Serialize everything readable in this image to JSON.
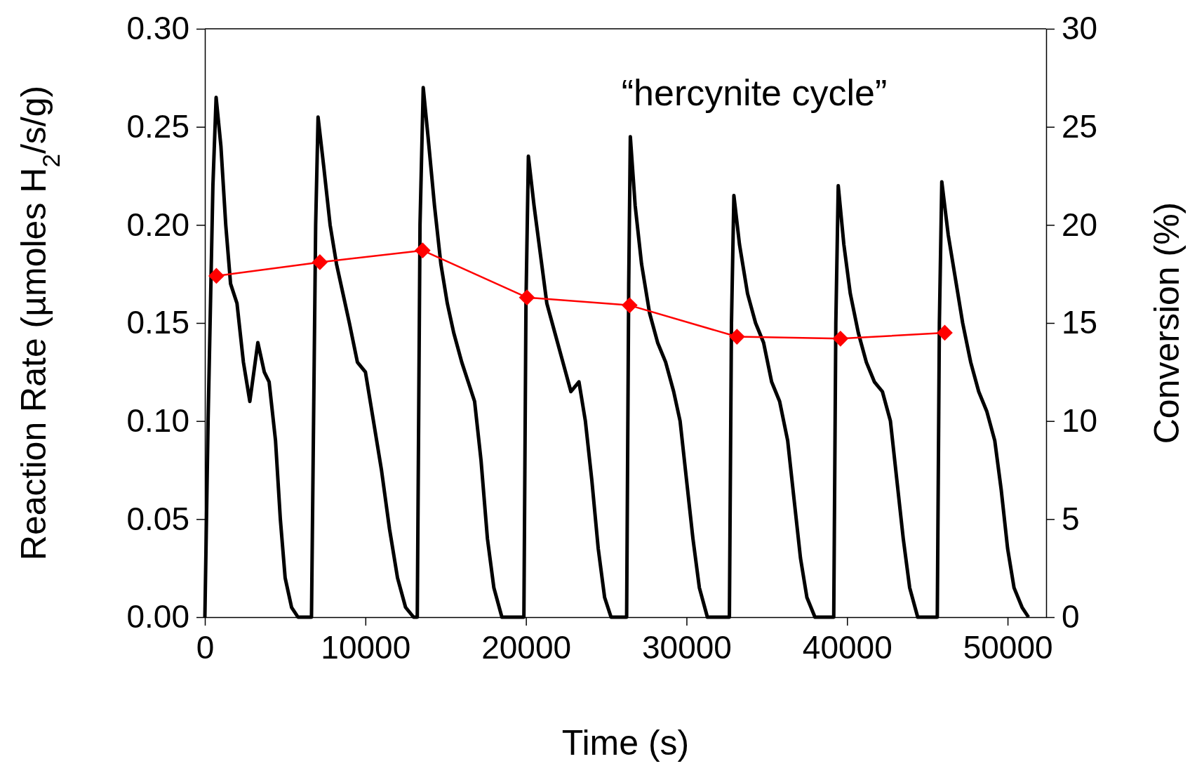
{
  "chart_data": {
    "type": "line",
    "xlabel": "Time (s)",
    "ylabel": "Reaction Rate (µmoles H$_{2}$/s/g)",
    "y2label": "Conversion (%)",
    "annotations": [
      "“hercynite cycle”"
    ],
    "xlim": [
      0,
      52400
    ],
    "xticks": [
      0,
      10000,
      20000,
      30000,
      40000,
      50000
    ],
    "ylim": [
      0,
      0.3
    ],
    "yticks": [
      {
        "value": 0,
        "label": "0.00"
      },
      {
        "value": 0.05,
        "label": "0.05"
      },
      {
        "value": 0.1,
        "label": "0.10"
      },
      {
        "value": 0.15,
        "label": "0.15"
      },
      {
        "value": 0.2,
        "label": "0.20"
      },
      {
        "value": 0.25,
        "label": "0.25"
      },
      {
        "value": 0.3,
        "label": "0.30"
      }
    ],
    "y2lim": [
      0,
      30
    ],
    "y2ticks": [
      0,
      5,
      10,
      15,
      20,
      25,
      30
    ],
    "grid": false,
    "line_style": "solid",
    "series": [
      {
        "color": "#000000",
        "marker": "none",
        "x": [
          0,
          200,
          500,
          700,
          1000,
          1300,
          1600,
          2000,
          2400,
          2800,
          3300,
          3700,
          4000,
          4400,
          4700,
          5000,
          5400,
          5800,
          6640,
          6900,
          7050,
          7400,
          7800,
          8200,
          8600,
          9000,
          9500,
          10000,
          10500,
          11000,
          11500,
          12000,
          12500,
          13000,
          13230,
          13400,
          13600,
          13900,
          14300,
          14700,
          15100,
          15500,
          16000,
          16400,
          16800,
          17200,
          17600,
          18000,
          18500,
          19870,
          20000,
          20150,
          20500,
          20900,
          21300,
          21800,
          22300,
          22800,
          23300,
          23700,
          24100,
          24500,
          24900,
          25300,
          26270,
          26400,
          26500,
          26800,
          27200,
          27700,
          28200,
          28700,
          29200,
          29600,
          30000,
          30400,
          30800,
          31300,
          32670,
          32800,
          32950,
          33300,
          33800,
          34300,
          34800,
          35300,
          35800,
          36300,
          36700,
          37100,
          37500,
          38000,
          39170,
          39300,
          39450,
          39800,
          40200,
          40700,
          41200,
          41700,
          42200,
          42700,
          43100,
          43500,
          43900,
          44400,
          45620,
          45750,
          45900,
          46300,
          46700,
          47200,
          47700,
          48200,
          48700,
          49200,
          49600,
          50000,
          50400,
          50900,
          51300
        ],
        "values": [
          0,
          0.1,
          0.22,
          0.265,
          0.24,
          0.2,
          0.17,
          0.16,
          0.13,
          0.11,
          0.14,
          0.125,
          0.12,
          0.09,
          0.05,
          0.02,
          0.005,
          0,
          0,
          0.2,
          0.255,
          0.23,
          0.2,
          0.18,
          0.165,
          0.15,
          0.13,
          0.125,
          0.1,
          0.075,
          0.045,
          0.02,
          0.005,
          0,
          0,
          0.2,
          0.27,
          0.245,
          0.21,
          0.18,
          0.16,
          0.145,
          0.13,
          0.12,
          0.11,
          0.08,
          0.04,
          0.015,
          0,
          0,
          0.16,
          0.235,
          0.21,
          0.185,
          0.16,
          0.145,
          0.13,
          0.115,
          0.12,
          0.1,
          0.07,
          0.035,
          0.01,
          0,
          0,
          0.17,
          0.245,
          0.21,
          0.18,
          0.155,
          0.14,
          0.13,
          0.115,
          0.1,
          0.07,
          0.04,
          0.015,
          0,
          0,
          0.15,
          0.215,
          0.19,
          0.165,
          0.15,
          0.14,
          0.12,
          0.11,
          0.09,
          0.06,
          0.03,
          0.01,
          0,
          0,
          0.15,
          0.22,
          0.19,
          0.165,
          0.145,
          0.13,
          0.12,
          0.115,
          0.1,
          0.07,
          0.04,
          0.015,
          0,
          0,
          0.15,
          0.222,
          0.195,
          0.175,
          0.15,
          0.13,
          0.115,
          0.105,
          0.09,
          0.065,
          0.035,
          0.015,
          0.005,
          0
        ]
      },
      {
        "color": "#ff0000",
        "marker": "diamond",
        "axis": "y2",
        "x": [
          716,
          7163,
          13563,
          20058,
          26456,
          33141,
          39589,
          46084
        ],
        "values": [
          17.4,
          18.1,
          18.7,
          16.3,
          15.9,
          14.3,
          14.2,
          14.5
        ]
      }
    ]
  }
}
